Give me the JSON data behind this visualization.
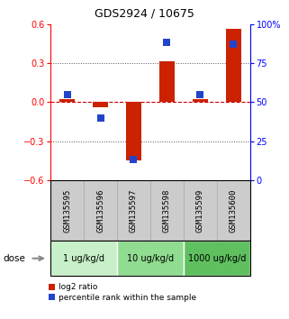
{
  "title": "GDS2924 / 10675",
  "samples": [
    "GSM135595",
    "GSM135596",
    "GSM135597",
    "GSM135598",
    "GSM135599",
    "GSM135600"
  ],
  "log2_ratio": [
    0.02,
    -0.04,
    -0.45,
    0.31,
    0.02,
    0.56
  ],
  "percentile_rank": [
    55,
    40,
    13,
    88,
    55,
    87
  ],
  "dose_groups": [
    {
      "label": "1 ug/kg/d",
      "samples": [
        0,
        1
      ],
      "color": "#c8f0c8"
    },
    {
      "label": "10 ug/kg/d",
      "samples": [
        2,
        3
      ],
      "color": "#90dc90"
    },
    {
      "label": "1000 ug/kg/d",
      "samples": [
        4,
        5
      ],
      "color": "#60c060"
    }
  ],
  "ylim_left": [
    -0.6,
    0.6
  ],
  "ylim_right": [
    0,
    100
  ],
  "bar_color": "#cc2200",
  "dot_color": "#2244cc",
  "bar_width": 0.45,
  "dot_size": 28,
  "yticks_left": [
    -0.6,
    -0.3,
    0.0,
    0.3,
    0.6
  ],
  "yticks_right": [
    0,
    25,
    50,
    75,
    100
  ],
  "hline_color": "#cc0000",
  "grid_color": "#555555",
  "sample_box_color": "#cccccc",
  "sample_box_edge": "#aaaaaa",
  "legend_red_label": "log2 ratio",
  "legend_blue_label": "percentile rank within the sample",
  "dose_label": "dose"
}
